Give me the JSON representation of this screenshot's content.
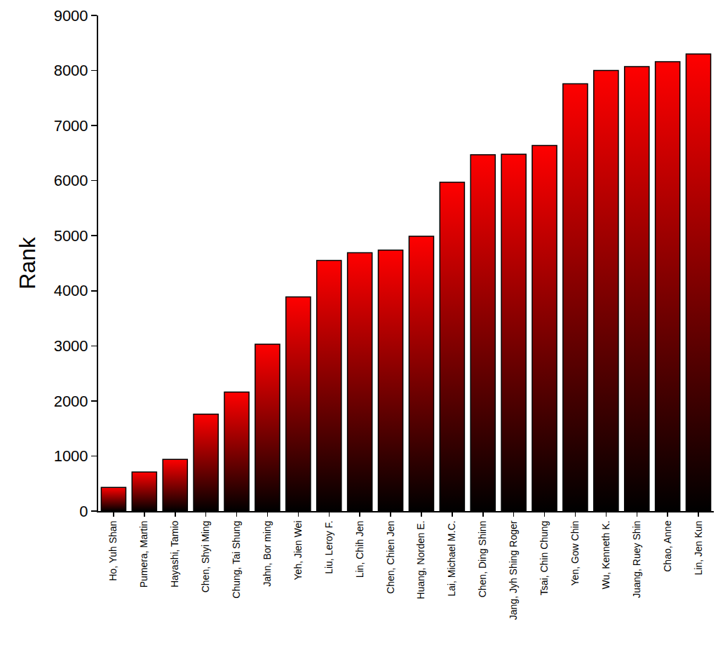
{
  "chart_data": {
    "type": "bar",
    "categories": [
      "Ho, Yuh Shan",
      "Pumera, Martin",
      "Hayashi, Tamio",
      "Chen, Shyi Ming",
      "Chung, Tai Shung",
      "Jahn, Bor ming",
      "Yeh, Jien Wei",
      "Liu, Leroy F.",
      "Lin, Chih Jen",
      "Chen, Chien Jen",
      "Huang, Norden E.",
      "Lai, Michael M.C.",
      "Chen, Ding Shinn",
      "Jang, Jyh Shing Roger",
      "Tsai, Chin Chung",
      "Yen, Gow Chin",
      "Wu, Kenneth K.",
      "Juang, Ruey Shin",
      "Chao, Anne",
      "Lin, Jen Kun"
    ],
    "values": [
      430,
      710,
      940,
      1760,
      2160,
      3030,
      3890,
      4550,
      4690,
      4740,
      4990,
      5970,
      6470,
      6480,
      6640,
      7760,
      8000,
      8070,
      8160,
      8300
    ],
    "y_label": "Rank",
    "color": "#ff0000",
    "ylim": [
      0,
      9000
    ],
    "yticks": [
      0,
      1000,
      2000,
      3000,
      4000,
      5000,
      6000,
      7000,
      8000,
      9000
    ],
    "grid": false
  }
}
